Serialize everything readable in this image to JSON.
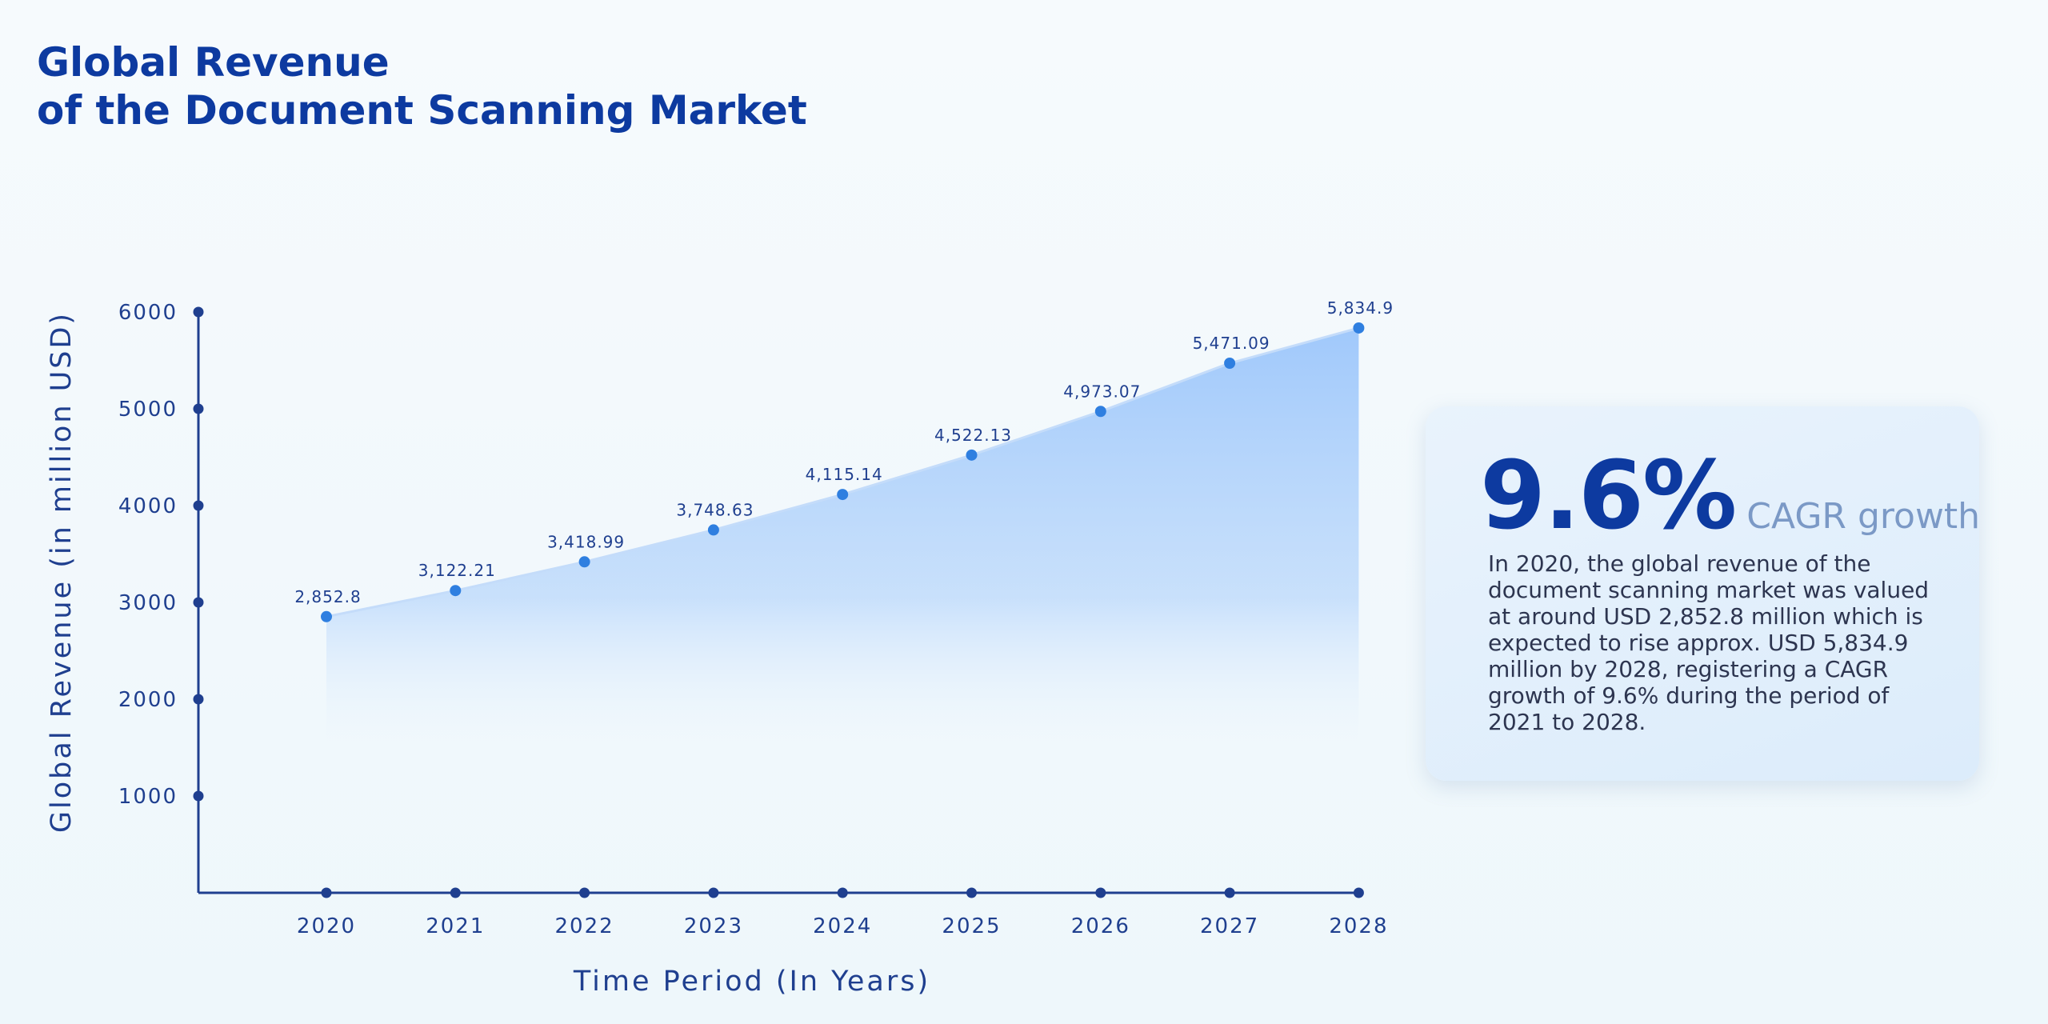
{
  "title": {
    "line1": "Global Revenue",
    "line2": "of the Document Scanning Market"
  },
  "card": {
    "stat": "9.6%",
    "stat_label": "CAGR growth",
    "description": "In 2020, the global revenue of the document scanning market was valued at around USD 2,852.8 million which is expected to rise approx. USD 5,834.9 million by 2028, registering a CAGR growth of 9.6% during the period of 2021 to 2028."
  },
  "colors": {
    "title": "#0d3aa0",
    "axis": "#1f3f8f",
    "point": "#2f7fe0",
    "area": "#9cc6fb",
    "muted": "#7b99c6"
  },
  "chart_data": {
    "type": "area",
    "categories": [
      "2020",
      "2021",
      "2022",
      "2023",
      "2024",
      "2025",
      "2026",
      "2027",
      "2028"
    ],
    "values": [
      2852.8,
      3122.21,
      3418.99,
      3748.63,
      4115.14,
      4522.13,
      4973.07,
      5471.09,
      5834.9
    ],
    "data_labels": [
      "2,852.8",
      "3,122.21",
      "3,418.99",
      "3,748.63",
      "4,115.14",
      "4,522.13",
      "4,973.07",
      "5,471.09",
      "5,834.9"
    ],
    "yticks": [
      "1000",
      "2000",
      "3000",
      "4000",
      "5000",
      "6000"
    ],
    "xlabel": "Time Period (In Years)",
    "ylabel": "Global Revenue (in million USD)",
    "ylim": [
      0,
      6000
    ],
    "grid": false,
    "legend": "none"
  }
}
